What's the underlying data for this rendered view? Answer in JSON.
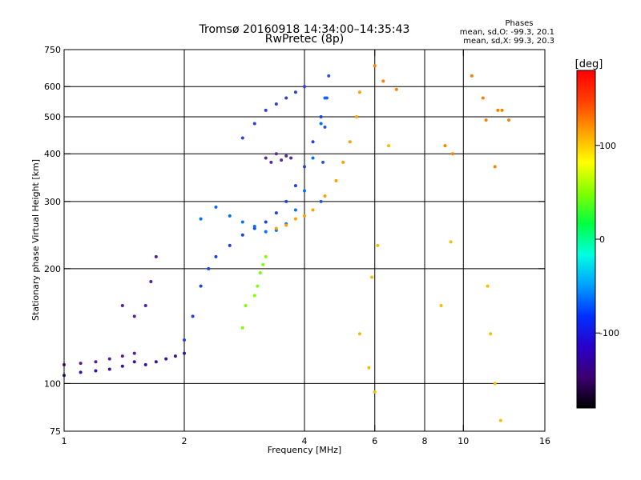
{
  "chart_data": {
    "type": "scatter",
    "title": "Tromsø 20160918 14:34:00–14:35:43",
    "subtitle": "RwPretec (8p)",
    "xlabel": "Frequency [MHz]",
    "ylabel": "Stationary phase Virtual Height [km]",
    "x_scale": "log",
    "y_scale": "log",
    "xlim": [
      1,
      16
    ],
    "ylim": [
      75,
      750
    ],
    "x_ticks": [
      1,
      2,
      4,
      6,
      8,
      10,
      16
    ],
    "x_tick_labels": [
      "1",
      "2",
      "4",
      "6",
      "8",
      "10",
      "16"
    ],
    "y_ticks": [
      75,
      100,
      200,
      300,
      400,
      500,
      600,
      750
    ],
    "y_tick_labels": [
      "75",
      "100",
      "200",
      "300",
      "400",
      "500",
      "600",
      "750"
    ],
    "grid": true,
    "grid_x": [
      2,
      4,
      6,
      8,
      10
    ],
    "grid_y": [
      100,
      200,
      300,
      400,
      500,
      600
    ],
    "stats": {
      "heading": "Phases",
      "line_o": "mean, sd,O: -99.3, 20.1",
      "line_x": "mean, sd,X:  99.3, 20.3"
    },
    "colorbar": {
      "label": "[deg]",
      "range": [
        -180,
        180
      ],
      "ticks": [
        100,
        0,
        -100
      ],
      "tick_labels": [
        "100",
        "0",
        "-100"
      ],
      "colors": [
        "#000000",
        "#3c0070",
        "#2a00c8",
        "#0030ff",
        "#00a0ff",
        "#00ffe0",
        "#00ff40",
        "#80ff00",
        "#ffff00",
        "#ffa000",
        "#ff4000",
        "#ff0000"
      ]
    },
    "series": [
      {
        "name": "",
        "color": "#3a10a0",
        "x": [
          1.0,
          1.1,
          1.2,
          1.3,
          1.4,
          1.5,
          1.6,
          1.7,
          1.8,
          1.9,
          2.0
        ],
        "y": [
          105,
          107,
          108,
          109,
          111,
          114,
          112,
          114,
          116,
          118,
          120
        ]
      },
      {
        "name": "",
        "color": "#5a1a90",
        "x": [
          1.0,
          1.1,
          1.2,
          1.3,
          1.4,
          1.5
        ],
        "y": [
          112,
          113,
          114,
          116,
          118,
          120
        ]
      },
      {
        "name": "",
        "color": "#2040e0",
        "x": [
          2.0,
          2.1,
          2.2,
          2.3,
          2.4,
          2.6,
          2.8,
          3.0,
          3.2,
          3.4,
          3.6,
          3.8,
          4.0,
          4.2,
          4.4
        ],
        "y": [
          130,
          150,
          180,
          200,
          215,
          230,
          245,
          255,
          265,
          280,
          300,
          330,
          370,
          430,
          500
        ]
      },
      {
        "name": "",
        "color": "#0070ff",
        "x": [
          2.2,
          2.4,
          2.6,
          2.8,
          3.0,
          3.2,
          3.4,
          3.6,
          3.8,
          4.0,
          4.2,
          4.4,
          4.5
        ],
        "y": [
          270,
          290,
          275,
          265,
          258,
          250,
          252,
          262,
          285,
          320,
          390,
          480,
          560
        ]
      },
      {
        "name": "",
        "color": "#ffa000",
        "x": [
          3.4,
          3.6,
          3.8,
          4.0,
          4.2,
          4.5,
          4.8,
          5.0,
          5.2,
          5.4,
          5.5
        ],
        "y": [
          255,
          260,
          270,
          275,
          285,
          310,
          340,
          380,
          430,
          500,
          580
        ]
      },
      {
        "name": "",
        "color": "#5a2aa0",
        "x": [
          3.2,
          3.3,
          3.4,
          3.5,
          3.6,
          3.7
        ],
        "y": [
          390,
          380,
          400,
          385,
          395,
          390
        ]
      },
      {
        "name": "",
        "color": "#3040d0",
        "x": [
          2.8,
          3.0,
          3.2,
          3.4,
          3.6,
          3.8,
          4.0
        ],
        "y": [
          440,
          480,
          520,
          540,
          560,
          580,
          600
        ]
      },
      {
        "name": "",
        "color": "#2a50f0",
        "x": [
          4.4,
          4.45,
          4.5,
          4.55,
          4.6
        ],
        "y": [
          300,
          380,
          470,
          560,
          640
        ]
      },
      {
        "name": "",
        "color": "#5020a0",
        "x": [
          1.4,
          1.5,
          1.6,
          1.65,
          1.7
        ],
        "y": [
          160,
          150,
          160,
          185,
          215
        ]
      },
      {
        "name": "",
        "color": "#80ff00",
        "x": [
          3.0,
          3.05,
          3.1,
          3.15,
          3.2,
          2.8,
          2.85
        ],
        "y": [
          170,
          180,
          195,
          205,
          215,
          140,
          160
        ]
      },
      {
        "name": "",
        "color": "#ff8000",
        "x": [
          6.0,
          6.3,
          6.8,
          9.0,
          9.4,
          10.5,
          11.2,
          11.4,
          12.0,
          12.2,
          12.5,
          13.0
        ],
        "y": [
          680,
          620,
          590,
          420,
          400,
          640,
          560,
          490,
          370,
          520,
          520,
          490
        ]
      },
      {
        "name": "",
        "color": "#f0c000",
        "x": [
          5.5,
          5.8,
          5.9,
          6.0,
          6.1,
          6.5,
          8.8,
          9.3,
          11.5,
          11.7,
          12.0,
          12.4
        ],
        "y": [
          135,
          110,
          190,
          95,
          230,
          420,
          160,
          235,
          180,
          135,
          100,
          80
        ]
      }
    ]
  }
}
